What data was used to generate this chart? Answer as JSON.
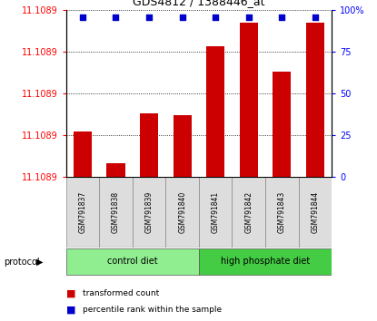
{
  "title": "GDS4812 / 1388446_at",
  "samples": [
    "GSM791837",
    "GSM791838",
    "GSM791839",
    "GSM791840",
    "GSM791841",
    "GSM791842",
    "GSM791843",
    "GSM791844"
  ],
  "bar_heights_relative": [
    0.27,
    0.08,
    0.38,
    0.37,
    0.78,
    0.92,
    0.63,
    0.92
  ],
  "y_min": 11.1086,
  "y_max": 11.1095,
  "y_left_label": "11.1089",
  "y_right_ticks": [
    0,
    25,
    50,
    75,
    100
  ],
  "y_right_labels": [
    "0",
    "25",
    "50",
    "75",
    "100%"
  ],
  "groups": [
    {
      "label": "control diet",
      "start": 0,
      "end": 4,
      "color": "#90EE90"
    },
    {
      "label": "high phosphate diet",
      "start": 4,
      "end": 8,
      "color": "#44CC44"
    }
  ],
  "bar_color": "#CC0000",
  "dot_color": "#0000CC",
  "protocol_label": "protocol",
  "legend_bar_label": "transformed count",
  "legend_dot_label": "percentile rank within the sample",
  "bar_width": 0.55
}
